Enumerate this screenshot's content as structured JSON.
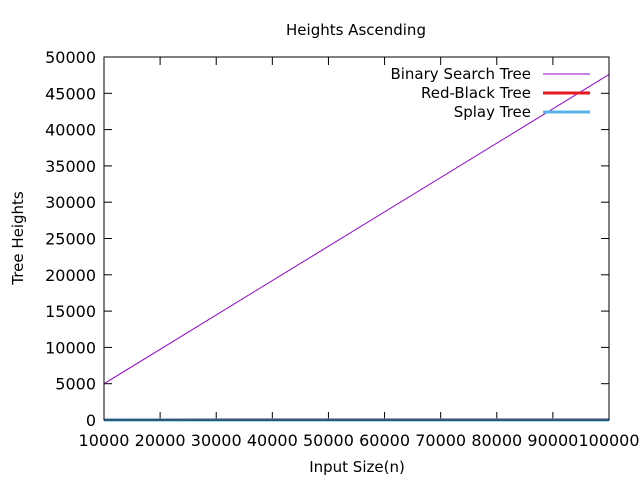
{
  "chart_data": {
    "type": "line",
    "title": "Heights Ascending",
    "xlabel": "Input Size(n)",
    "ylabel": "Tree Heights",
    "xlim": [
      10000,
      100000
    ],
    "ylim": [
      0,
      50000
    ],
    "xticks": [
      10000,
      20000,
      30000,
      40000,
      50000,
      60000,
      70000,
      80000,
      90000,
      100000
    ],
    "yticks": [
      0,
      5000,
      10000,
      15000,
      20000,
      25000,
      30000,
      35000,
      40000,
      45000,
      50000
    ],
    "grid": false,
    "legend_position": "top-right",
    "series": [
      {
        "name": "Binary Search Tree",
        "color": "#9400d3",
        "x": [
          10000,
          100000
        ],
        "y": [
          5000,
          47600
        ]
      },
      {
        "name": "Red-Black Tree",
        "color": "#e41a1c",
        "x": [
          10000,
          100000
        ],
        "y": [
          25,
          32
        ]
      },
      {
        "name": "Splay Tree",
        "color": "#56b4e9",
        "x": [
          10000,
          100000
        ],
        "y": [
          0,
          0
        ]
      }
    ]
  }
}
